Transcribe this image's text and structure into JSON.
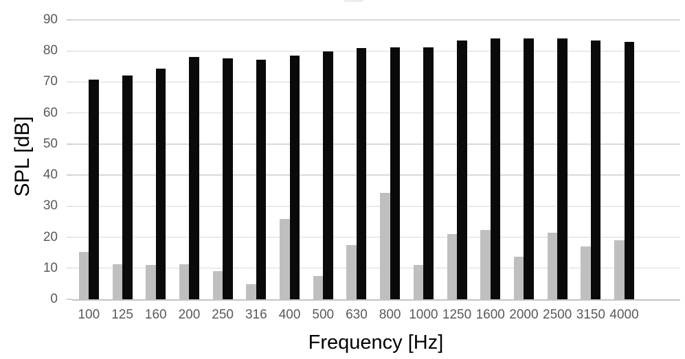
{
  "chart_data": {
    "type": "bar",
    "title": "",
    "xlabel": "Frequency [Hz]",
    "ylabel": "SPL [dB]",
    "categories": [
      "100",
      "125",
      "160",
      "200",
      "250",
      "316",
      "400",
      "500",
      "630",
      "800",
      "1000",
      "1250",
      "1600",
      "2000",
      "2500",
      "3150",
      "4000"
    ],
    "series": [
      {
        "name": "gray",
        "color": "#bfbfbf",
        "values": [
          15.3,
          11.3,
          11.1,
          11.2,
          9.0,
          4.8,
          25.8,
          7.5,
          17.4,
          34.3,
          11.1,
          20.9,
          22.3,
          13.7,
          21.5,
          17.0,
          19.0
        ]
      },
      {
        "name": "black",
        "color": "#0a0a0a",
        "values": [
          70.8,
          72.1,
          74.2,
          78.0,
          77.7,
          77.1,
          78.6,
          79.9,
          81.0,
          81.2,
          81.1,
          83.3,
          84.1,
          84.0,
          84.1,
          83.4,
          82.9
        ]
      }
    ],
    "y_ticks": [
      0,
      10,
      20,
      30,
      40,
      50,
      60,
      70,
      80,
      90
    ],
    "ylim": [
      0,
      90
    ],
    "grid": true,
    "legend": "none",
    "colors": {
      "grid_line": "#d9d9d9",
      "axis_line": "#c3c3c3",
      "tick_text": "#595959",
      "axis_title_text": "#000000"
    }
  }
}
